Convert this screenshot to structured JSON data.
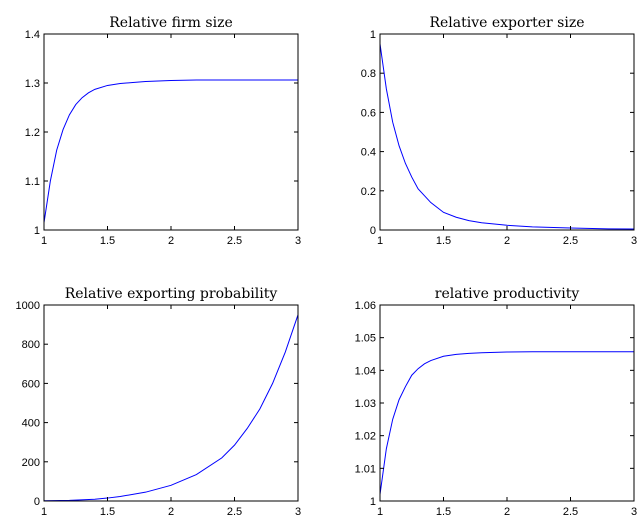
{
  "chart_data": [
    {
      "type": "line",
      "title": "Relative firm size",
      "xlabel": "",
      "ylabel": "",
      "xlim": [
        1,
        3
      ],
      "ylim": [
        1,
        1.4
      ],
      "xticks": [
        1,
        1.5,
        2,
        2.5,
        3
      ],
      "xtick_labels": [
        "1",
        "1.5",
        "2",
        "2.5",
        "3"
      ],
      "yticks": [
        1,
        1.1,
        1.2,
        1.3,
        1.4
      ],
      "ytick_labels": [
        "1",
        "1.1",
        "1.2",
        "1.3",
        "1.4"
      ],
      "grid": false,
      "series": [
        {
          "color": "#0000ff",
          "x": [
            1.0,
            1.05,
            1.1,
            1.15,
            1.2,
            1.25,
            1.3,
            1.35,
            1.4,
            1.5,
            1.6,
            1.7,
            1.8,
            2.0,
            2.2,
            2.5,
            3.0
          ],
          "y": [
            1.015,
            1.1,
            1.163,
            1.205,
            1.235,
            1.256,
            1.27,
            1.28,
            1.287,
            1.295,
            1.299,
            1.301,
            1.303,
            1.305,
            1.306,
            1.306,
            1.306
          ]
        }
      ]
    },
    {
      "type": "line",
      "title": "Relative exporter size",
      "xlabel": "",
      "ylabel": "",
      "xlim": [
        1,
        3
      ],
      "ylim": [
        0,
        1
      ],
      "xticks": [
        1,
        1.5,
        2,
        2.5,
        3
      ],
      "xtick_labels": [
        "1",
        "1.5",
        "2",
        "2.5",
        "3"
      ],
      "yticks": [
        0,
        0.2,
        0.4,
        0.6,
        0.8,
        1
      ],
      "ytick_labels": [
        "0",
        "0.2",
        "0.4",
        "0.6",
        "0.8",
        "1"
      ],
      "grid": false,
      "series": [
        {
          "color": "#0000ff",
          "x": [
            1.0,
            1.05,
            1.1,
            1.15,
            1.2,
            1.25,
            1.3,
            1.4,
            1.5,
            1.6,
            1.7,
            1.8,
            2.0,
            2.2,
            2.5,
            2.8,
            3.0
          ],
          "y": [
            0.95,
            0.72,
            0.55,
            0.43,
            0.34,
            0.27,
            0.21,
            0.14,
            0.09,
            0.065,
            0.048,
            0.037,
            0.024,
            0.016,
            0.01,
            0.006,
            0.005
          ]
        }
      ]
    },
    {
      "type": "line",
      "title": "Relative exporting probability",
      "xlabel": "",
      "ylabel": "",
      "xlim": [
        1,
        3
      ],
      "ylim": [
        0,
        1000
      ],
      "xticks": [
        1,
        1.5,
        2,
        2.5,
        3
      ],
      "xtick_labels": [
        "1",
        "1.5",
        "2",
        "2.5",
        "3"
      ],
      "yticks": [
        0,
        200,
        400,
        600,
        800,
        1000
      ],
      "ytick_labels": [
        "0",
        "200",
        "400",
        "600",
        "800",
        "1000"
      ],
      "grid": false,
      "series": [
        {
          "color": "#0000ff",
          "x": [
            1.0,
            1.2,
            1.4,
            1.5,
            1.6,
            1.8,
            2.0,
            2.2,
            2.4,
            2.5,
            2.6,
            2.7,
            2.8,
            2.9,
            3.0
          ],
          "y": [
            1,
            3,
            9,
            15,
            23,
            45,
            80,
            135,
            220,
            285,
            370,
            470,
            600,
            760,
            950
          ]
        }
      ]
    },
    {
      "type": "line",
      "title": "relative productivity",
      "xlabel": "",
      "ylabel": "",
      "xlim": [
        1,
        3
      ],
      "ylim": [
        1,
        1.06
      ],
      "xticks": [
        1,
        1.5,
        2,
        2.5,
        3
      ],
      "xtick_labels": [
        "1",
        "1.5",
        "2",
        "2.5",
        "3"
      ],
      "yticks": [
        1,
        1.01,
        1.02,
        1.03,
        1.04,
        1.05,
        1.06
      ],
      "ytick_labels": [
        "1",
        "1.01",
        "1.02",
        "1.03",
        "1.04",
        "1.05",
        "1.06"
      ],
      "grid": false,
      "series": [
        {
          "color": "#0000ff",
          "x": [
            1.0,
            1.05,
            1.1,
            1.15,
            1.2,
            1.25,
            1.3,
            1.35,
            1.4,
            1.5,
            1.6,
            1.7,
            1.8,
            2.0,
            2.2,
            2.5,
            3.0
          ],
          "y": [
            1.002,
            1.016,
            1.025,
            1.031,
            1.035,
            1.0385,
            1.0405,
            1.042,
            1.043,
            1.0443,
            1.0449,
            1.0452,
            1.0454,
            1.0456,
            1.0457,
            1.0457,
            1.0457
          ]
        }
      ]
    }
  ]
}
